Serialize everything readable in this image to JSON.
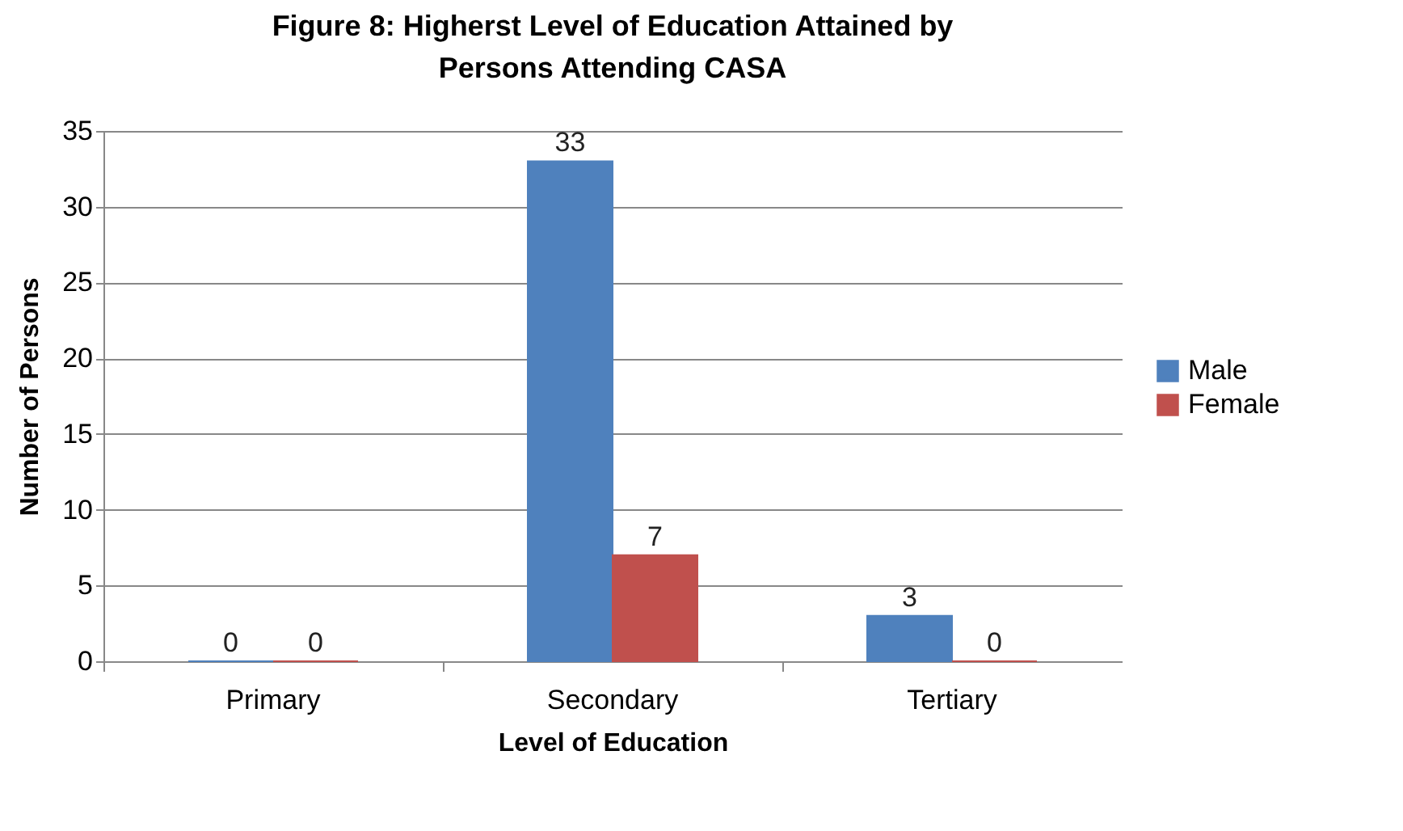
{
  "chart_data": {
    "type": "bar",
    "title": "Figure 8: Higherst Level of Education Attained by Persons Attending CASA",
    "xlabel": "Level of Education",
    "ylabel": "Number of Persons",
    "categories": [
      "Primary",
      "Secondary",
      "Tertiary"
    ],
    "series": [
      {
        "name": "Male",
        "color": "#4f81bd",
        "values": [
          0,
          33,
          3
        ]
      },
      {
        "name": "Female",
        "color": "#c0504d",
        "values": [
          0,
          7,
          0
        ]
      }
    ],
    "ylim": [
      0,
      35
    ],
    "yticks": [
      0,
      5,
      10,
      15,
      20,
      25,
      30,
      35
    ],
    "grid": "y",
    "legend": "right",
    "data_labels": true
  }
}
